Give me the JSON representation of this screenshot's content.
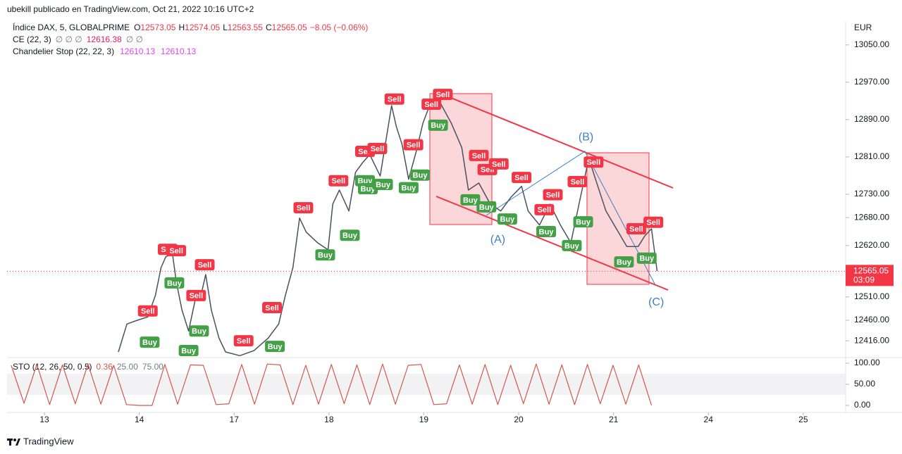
{
  "header": {
    "publisher": "ubekill publicado en TradingView.com, Oct 21, 2022 10:16 UTC+2",
    "symbol": "Índice DAX, 5, GLOBALPRIME",
    "ohlc": [
      {
        "key": "O",
        "value": "12573.05"
      },
      {
        "key": "H",
        "value": "12574.05"
      },
      {
        "key": "L",
        "value": "12563.55"
      },
      {
        "key": "C",
        "value": "12565.05"
      }
    ],
    "change": "−8.05 (−0.06%)",
    "indicators": [
      {
        "name": "CE (22, 3)",
        "parts": [
          "∅ ∅ ∅",
          "12616.38",
          "∅ ∅"
        ]
      },
      {
        "name": "Chandelier Stop (22, 22, 3)",
        "parts": [
          "12610.13",
          "12610.13"
        ]
      }
    ]
  },
  "footer": {
    "brand": "TradingView"
  },
  "chart_data": [
    {
      "type": "line",
      "currency": "EUR",
      "color": "#4a5060",
      "xlim": [
        -0.394,
        8.447
      ],
      "ylim": [
        12380,
        13101
      ],
      "xticks": [
        {
          "value": 0,
          "label": "13"
        },
        {
          "value": 1,
          "label": "14"
        },
        {
          "value": 2,
          "label": "17"
        },
        {
          "value": 3,
          "label": "18"
        },
        {
          "value": 4,
          "label": "19"
        },
        {
          "value": 5,
          "label": "20"
        },
        {
          "value": 6,
          "label": "21"
        },
        {
          "value": 7,
          "label": "24"
        },
        {
          "value": 8,
          "label": "25"
        }
      ],
      "yticks": [
        {
          "value": 13050,
          "label": "13050.00"
        },
        {
          "value": 12970,
          "label": "12970.00"
        },
        {
          "value": 12890,
          "label": "12890.00"
        },
        {
          "value": 12810,
          "label": "12810.00"
        },
        {
          "value": 12730,
          "label": "12730.00"
        },
        {
          "value": 12680,
          "label": "12680.00"
        },
        {
          "value": 12620,
          "label": "12620.00"
        },
        {
          "value": 12510,
          "label": "12510.00"
        },
        {
          "value": 12460,
          "label": "12460.00"
        },
        {
          "value": 12416,
          "label": "12416.00"
        }
      ],
      "x": [
        0.78,
        0.87,
        0.98,
        1.09,
        1.17,
        1.23,
        1.28,
        1.35,
        1.39,
        1.45,
        1.52,
        1.6,
        1.65,
        1.7,
        1.76,
        1.84,
        1.91,
        2.06,
        2.21,
        2.36,
        2.47,
        2.54,
        2.62,
        2.69,
        2.76,
        2.88,
        2.99,
        3.04,
        3.11,
        3.21,
        3.28,
        3.36,
        3.43,
        3.54,
        3.66,
        3.71,
        3.77,
        3.84,
        3.92,
        3.99,
        4.06,
        4.18,
        4.29,
        4.4,
        4.47,
        4.58,
        4.7,
        4.81,
        4.92,
        5.03,
        5.1,
        5.22,
        5.33,
        5.44,
        5.55,
        5.66,
        5.74,
        5.81,
        5.92,
        6.03,
        6.14,
        6.26,
        6.33,
        6.4,
        6.46
      ],
      "values": [
        12392,
        12452,
        12460,
        12467,
        12513,
        12573,
        12596,
        12603,
        12543,
        12482,
        12437,
        12513,
        12513,
        12558,
        12482,
        12422,
        12392,
        12384,
        12395,
        12422,
        12452,
        12513,
        12573,
        12679,
        12649,
        12626,
        12611,
        12709,
        12739,
        12694,
        12777,
        12799,
        12815,
        12769,
        12920,
        12875,
        12837,
        12762,
        12822,
        12882,
        12920,
        12923,
        12882,
        12830,
        12739,
        12754,
        12709,
        12694,
        12724,
        12747,
        12694,
        12664,
        12709,
        12664,
        12626,
        12732,
        12807,
        12762,
        12694,
        12656,
        12618,
        12618,
        12641,
        12656,
        12565.05
      ],
      "last_price": 12565.05,
      "countdown": "03:09",
      "last_color": "#f23645",
      "sell_signals": {
        "label": "Sell",
        "color": "#f23645",
        "points": [
          {
            "x": 1.09,
            "y": 12480
          },
          {
            "x": 1.3,
            "y": 12612
          },
          {
            "x": 1.39,
            "y": 12609
          },
          {
            "x": 1.69,
            "y": 12579
          },
          {
            "x": 1.6,
            "y": 12513
          },
          {
            "x": 2.4,
            "y": 12487
          },
          {
            "x": 2.1,
            "y": 12416
          },
          {
            "x": 2.73,
            "y": 12701
          },
          {
            "x": 3.1,
            "y": 12759
          },
          {
            "x": 3.38,
            "y": 12822
          },
          {
            "x": 3.51,
            "y": 12828
          },
          {
            "x": 3.69,
            "y": 12934
          },
          {
            "x": 3.89,
            "y": 12836
          },
          {
            "x": 4.08,
            "y": 12923
          },
          {
            "x": 4.2,
            "y": 12944
          },
          {
            "x": 4.58,
            "y": 12813
          },
          {
            "x": 4.67,
            "y": 12783
          },
          {
            "x": 4.79,
            "y": 12795
          },
          {
            "x": 5.03,
            "y": 12766
          },
          {
            "x": 5.36,
            "y": 12729
          },
          {
            "x": 5.27,
            "y": 12697
          },
          {
            "x": 5.62,
            "y": 12757
          },
          {
            "x": 5.79,
            "y": 12799
          },
          {
            "x": 6.24,
            "y": 12656
          },
          {
            "x": 6.42,
            "y": 12670
          }
        ]
      },
      "buy_signals": {
        "label": "Buy",
        "color": "#43a047",
        "points": [
          {
            "x": 1.11,
            "y": 12413
          },
          {
            "x": 1.37,
            "y": 12540
          },
          {
            "x": 1.52,
            "y": 12395
          },
          {
            "x": 1.63,
            "y": 12437
          },
          {
            "x": 2.43,
            "y": 12404
          },
          {
            "x": 2.96,
            "y": 12600
          },
          {
            "x": 3.22,
            "y": 12642
          },
          {
            "x": 3.38,
            "y": 12759
          },
          {
            "x": 3.41,
            "y": 12742
          },
          {
            "x": 3.57,
            "y": 12751
          },
          {
            "x": 3.84,
            "y": 12744
          },
          {
            "x": 3.96,
            "y": 12771
          },
          {
            "x": 4.15,
            "y": 12878
          },
          {
            "x": 4.49,
            "y": 12718
          },
          {
            "x": 4.66,
            "y": 12703
          },
          {
            "x": 4.88,
            "y": 12677
          },
          {
            "x": 5.29,
            "y": 12650
          },
          {
            "x": 5.56,
            "y": 12620
          },
          {
            "x": 5.68,
            "y": 12671
          },
          {
            "x": 6.11,
            "y": 12585
          },
          {
            "x": 6.35,
            "y": 12593
          }
        ]
      },
      "wave_color": "#3d7fc1",
      "waves": [
        {
          "label": "(A)",
          "x": 4.78,
          "y": 12632
        },
        {
          "label": "(B)",
          "x": 5.71,
          "y": 12852
        },
        {
          "label": "(C)",
          "x": 6.45,
          "y": 12498
        }
      ]
    },
    {
      "type": "line",
      "title": "STO (12, 26, 50, 0.5)",
      "readouts": [
        "0.36",
        "25.00",
        "75.00"
      ],
      "color": "#d2584c",
      "band_color": "#e9e9ee",
      "xlim": [
        -0.394,
        8.447
      ],
      "ylim": [
        -11.7,
        110
      ],
      "yticks": [
        {
          "value": 100,
          "label": "100.00"
        },
        {
          "value": 50,
          "label": "50.00"
        },
        {
          "value": 0,
          "label": "0.00"
        }
      ],
      "x": [
        -0.35,
        -0.215,
        -0.08,
        0.055,
        0.19,
        0.325,
        0.46,
        0.595,
        0.73,
        0.865,
        1.0,
        1.135,
        1.27,
        1.405,
        1.54,
        1.675,
        1.81,
        1.945,
        2.08,
        2.215,
        2.35,
        2.485,
        2.62,
        2.755,
        2.89,
        3.025,
        3.16,
        3.295,
        3.43,
        3.565,
        3.7,
        3.835,
        3.97,
        4.105,
        4.24,
        4.375,
        4.51,
        4.645,
        4.78,
        4.915,
        5.05,
        5.185,
        5.32,
        5.455,
        5.59,
        5.725,
        5.86,
        5.995,
        6.13,
        6.265,
        6.4
      ],
      "values": [
        95,
        5,
        97,
        2,
        96,
        4,
        98,
        3,
        95,
        2,
        0,
        0,
        97,
        3,
        96,
        95,
        2,
        4,
        97,
        3,
        98,
        96,
        2,
        95,
        3,
        97,
        4,
        96,
        2,
        98,
        3,
        95,
        97,
        2,
        4,
        96,
        3,
        97,
        2,
        95,
        4,
        98,
        3,
        96,
        2,
        97,
        4,
        95,
        3,
        96,
        0.36
      ]
    }
  ]
}
